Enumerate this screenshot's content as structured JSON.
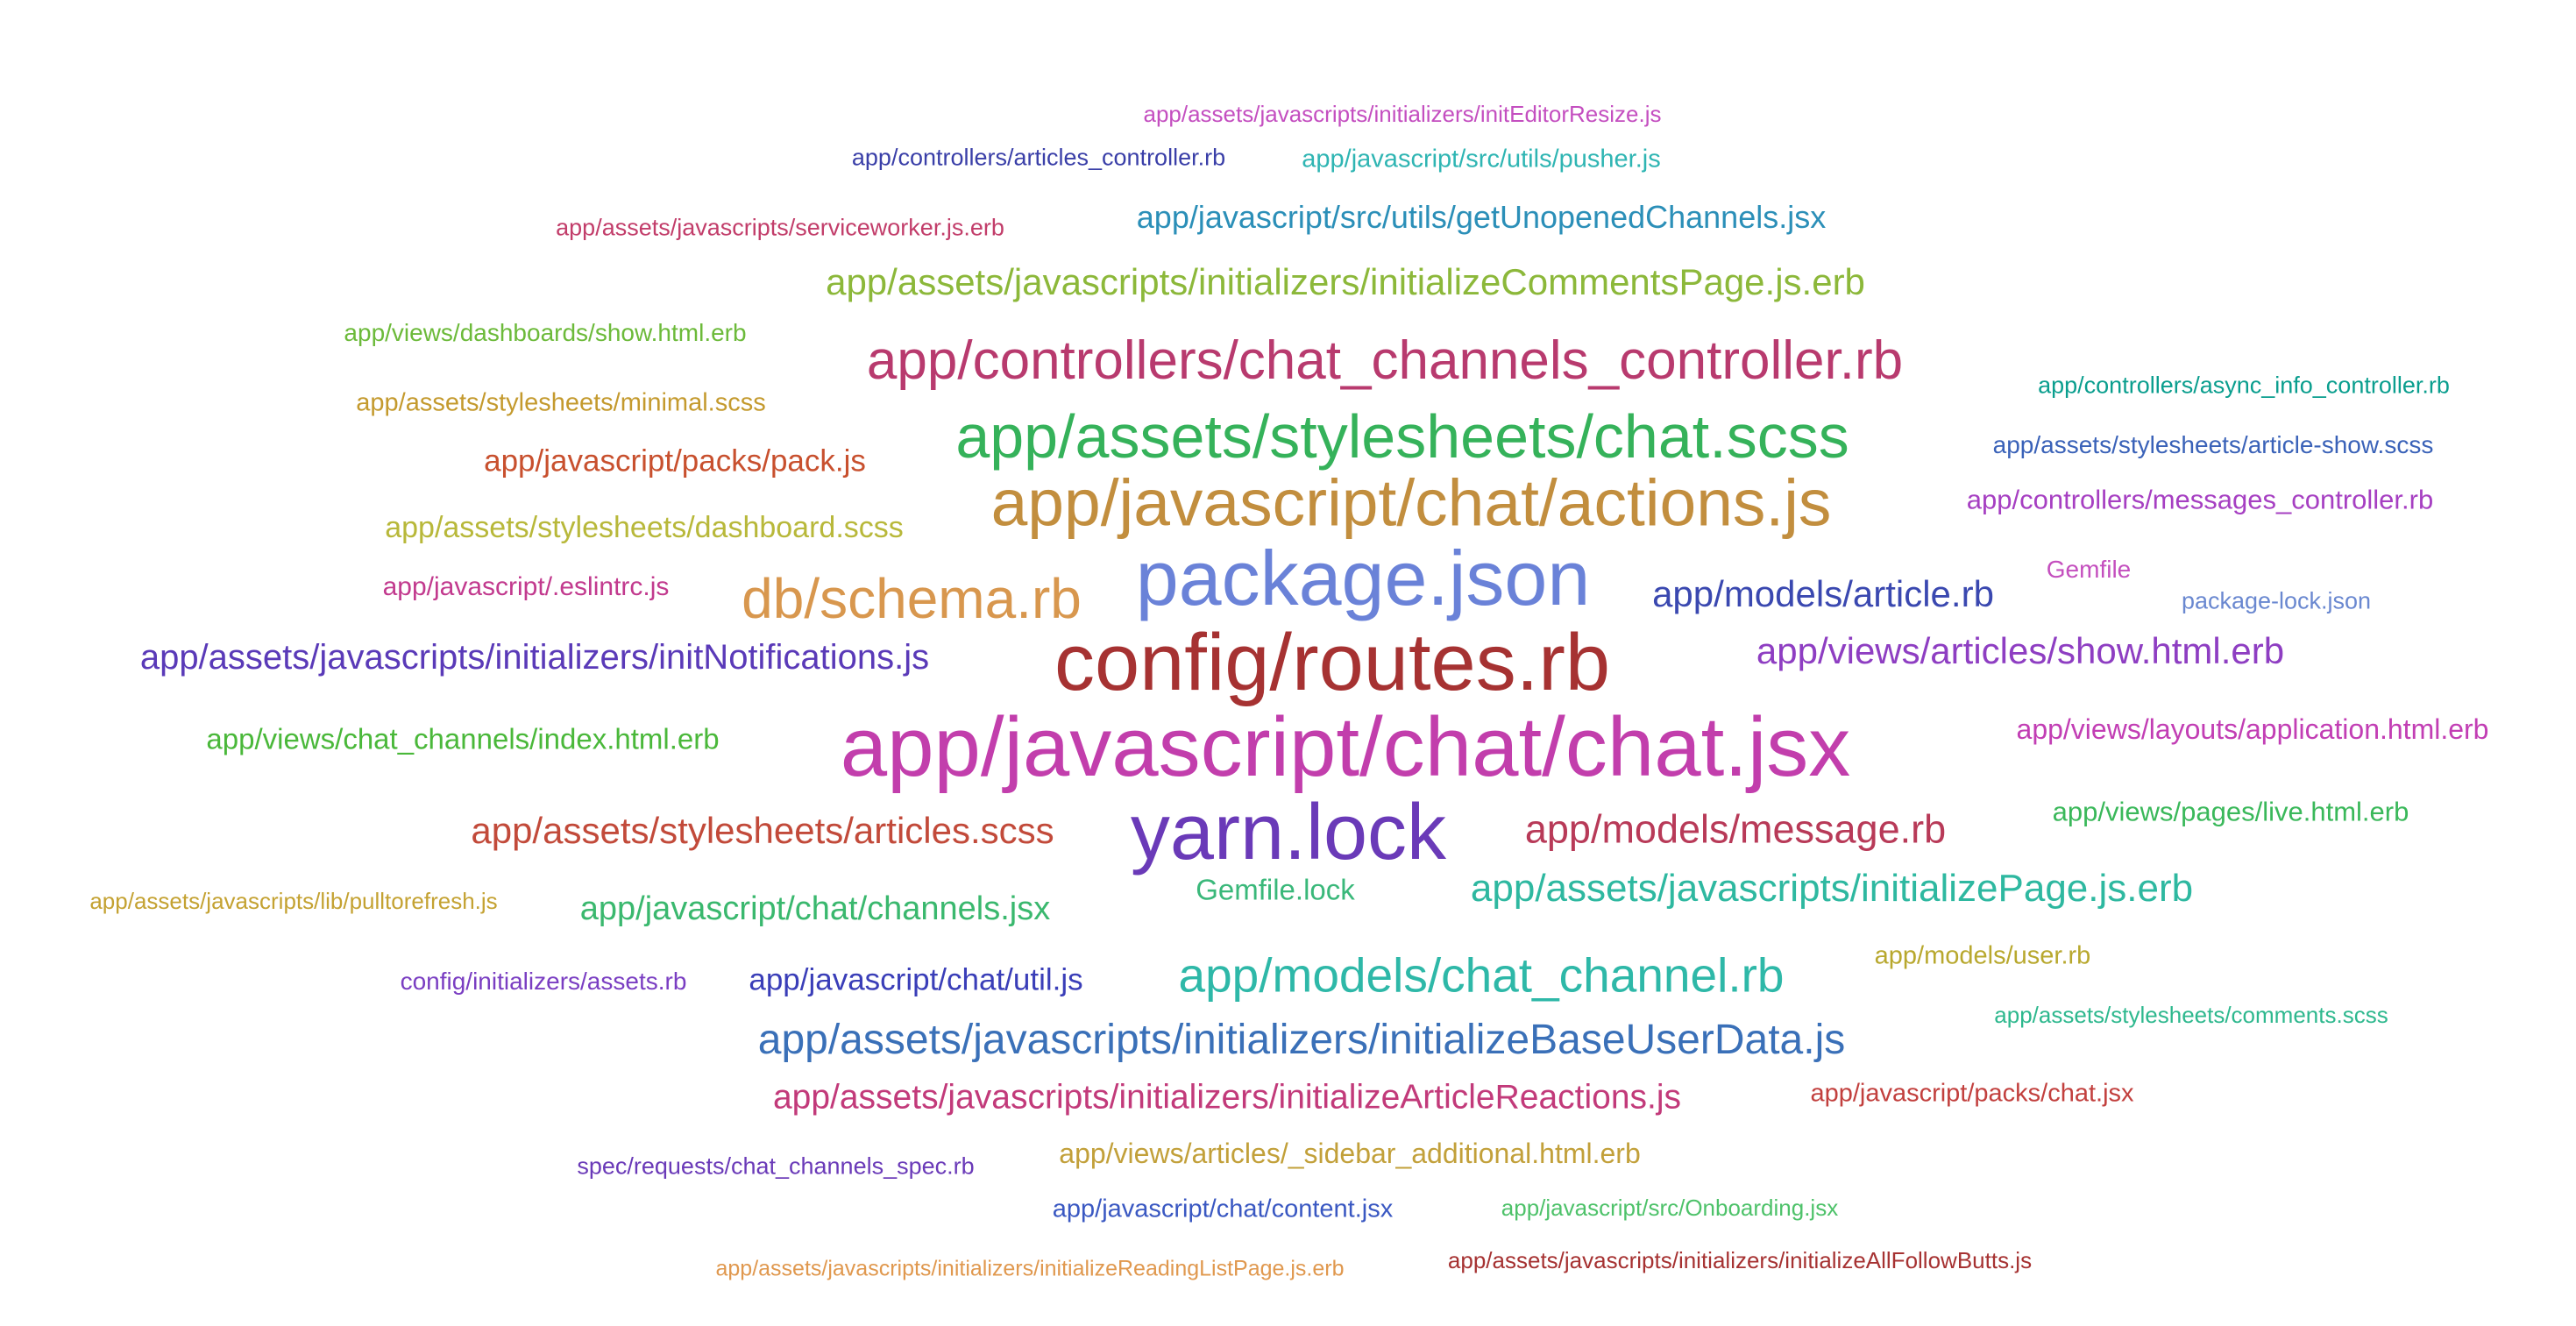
{
  "words": [
    {
      "text": "app/assets/javascripts/initializers/initEditorResize.js",
      "color": "#c44fc0"
    },
    {
      "text": "app/controllers/articles_controller.rb",
      "color": "#3a3fa8"
    },
    {
      "text": "app/javascript/src/utils/pusher.js",
      "color": "#2fb5b3"
    },
    {
      "text": "app/javascript/src/utils/getUnopenedChannels.jsx",
      "color": "#2b8fb8"
    },
    {
      "text": "app/assets/javascripts/serviceworker.js.erb",
      "color": "#c23d6a"
    },
    {
      "text": "app/assets/javascripts/initializers/initializeCommentsPage.js.erb",
      "color": "#8cb83a"
    },
    {
      "text": "app/views/dashboards/show.html.erb",
      "color": "#6cba3a"
    },
    {
      "text": "app/controllers/chat_channels_controller.rb",
      "color": "#b83a6e"
    },
    {
      "text": "app/controllers/async_info_controller.rb",
      "color": "#0a9e8e"
    },
    {
      "text": "app/assets/stylesheets/minimal.scss",
      "color": "#c49a2e"
    },
    {
      "text": "app/assets/stylesheets/chat.scss",
      "color": "#35b25a"
    },
    {
      "text": "app/javascript/packs/pack.js",
      "color": "#c8502e"
    },
    {
      "text": "app/assets/stylesheets/article-show.scss",
      "color": "#3a62b8"
    },
    {
      "text": "app/javascript/chat/actions.js",
      "color": "#c28e3e"
    },
    {
      "text": "app/controllers/messages_controller.rb",
      "color": "#a63fc2"
    },
    {
      "text": "app/assets/stylesheets/dashboard.scss",
      "color": "#b8b83a"
    },
    {
      "text": "app/javascript/.eslintrc.js",
      "color": "#c23a8e"
    },
    {
      "text": "db/schema.rb",
      "color": "#d8974e"
    },
    {
      "text": "package.json",
      "color": "#6a82d8"
    },
    {
      "text": "app/models/article.rb",
      "color": "#3a48b0"
    },
    {
      "text": "Gemfile",
      "color": "#c44fbe"
    },
    {
      "text": "package-lock.json",
      "color": "#6a88d0"
    },
    {
      "text": "app/assets/javascripts/initializers/initNotifications.js",
      "color": "#5a3ab8"
    },
    {
      "text": "config/routes.rb",
      "color": "#a63232"
    },
    {
      "text": "app/views/articles/show.html.erb",
      "color": "#8e3ec2"
    },
    {
      "text": "app/views/chat_channels/index.html.erb",
      "color": "#4ab83a"
    },
    {
      "text": "app/javascript/chat/chat.jsx",
      "color": "#c23eac"
    },
    {
      "text": "app/views/layouts/application.html.erb",
      "color": "#c23eb4"
    },
    {
      "text": "app/assets/stylesheets/articles.scss",
      "color": "#c24a3a"
    },
    {
      "text": "yarn.lock",
      "color": "#6a3ab8"
    },
    {
      "text": "app/models/message.rb",
      "color": "#b83a58"
    },
    {
      "text": "app/views/pages/live.html.erb",
      "color": "#3ab85a"
    },
    {
      "text": "app/assets/javascripts/lib/pulltorefresh.js",
      "color": "#c4a232"
    },
    {
      "text": "app/javascript/chat/channels.jsx",
      "color": "#3ab86e"
    },
    {
      "text": "Gemfile.lock",
      "color": "#3ab87a"
    },
    {
      "text": "app/assets/javascripts/initializePage.js.erb",
      "color": "#2eb8a0"
    },
    {
      "text": "app/models/user.rb",
      "color": "#b8a82e"
    },
    {
      "text": "config/initializers/assets.rb",
      "color": "#7a3ec2"
    },
    {
      "text": "app/javascript/chat/util.js",
      "color": "#3a3eb8"
    },
    {
      "text": "app/models/chat_channel.rb",
      "color": "#2eb8a8"
    },
    {
      "text": "app/assets/stylesheets/comments.scss",
      "color": "#2eb88e"
    },
    {
      "text": "app/assets/javascripts/initializers/initializeBaseUserData.js",
      "color": "#3a70b8"
    },
    {
      "text": "app/assets/javascripts/initializers/initializeArticleReactions.js",
      "color": "#c23a7a"
    },
    {
      "text": "app/javascript/packs/chat.jsx",
      "color": "#c2403e"
    },
    {
      "text": "app/views/articles/_sidebar_additional.html.erb",
      "color": "#c2a03a"
    },
    {
      "text": "spec/requests/chat_channels_spec.rb",
      "color": "#6a3ab8"
    },
    {
      "text": "app/javascript/chat/content.jsx",
      "color": "#3a58c2"
    },
    {
      "text": "app/javascript/src/Onboarding.jsx",
      "color": "#4ec26a"
    },
    {
      "text": "app/assets/javascripts/initializers/initializeReadingListPage.js.erb",
      "color": "#e0984e"
    },
    {
      "text": "app/assets/javascripts/initializers/initializeAllFollowButts.js",
      "color": "#a63232"
    }
  ]
}
